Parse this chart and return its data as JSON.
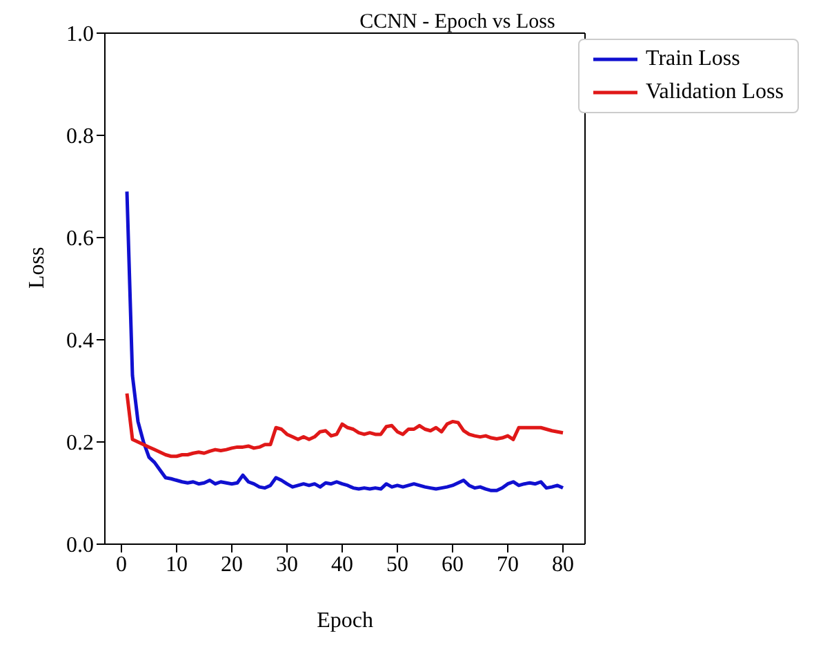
{
  "chart_data": {
    "type": "line",
    "title": "CCNN - Epoch vs Loss",
    "xlabel": "Epoch",
    "ylabel": "Loss",
    "x": [
      1,
      2,
      3,
      4,
      5,
      6,
      7,
      8,
      9,
      10,
      11,
      12,
      13,
      14,
      15,
      16,
      17,
      18,
      19,
      20,
      21,
      22,
      23,
      24,
      25,
      26,
      27,
      28,
      29,
      30,
      31,
      32,
      33,
      34,
      35,
      36,
      37,
      38,
      39,
      40,
      41,
      42,
      43,
      44,
      45,
      46,
      47,
      48,
      49,
      50,
      51,
      52,
      53,
      54,
      55,
      56,
      57,
      58,
      59,
      60,
      61,
      62,
      63,
      64,
      65,
      66,
      67,
      68,
      69,
      70,
      71,
      72,
      73,
      74,
      75,
      76,
      77,
      78,
      79,
      80
    ],
    "series": [
      {
        "name": "Train Loss",
        "color": "#1010d0",
        "values": [
          0.69,
          0.33,
          0.24,
          0.2,
          0.17,
          0.16,
          0.145,
          0.13,
          0.128,
          0.125,
          0.122,
          0.12,
          0.122,
          0.118,
          0.12,
          0.125,
          0.118,
          0.122,
          0.12,
          0.118,
          0.12,
          0.135,
          0.122,
          0.118,
          0.112,
          0.11,
          0.115,
          0.13,
          0.125,
          0.118,
          0.112,
          0.115,
          0.118,
          0.115,
          0.118,
          0.112,
          0.12,
          0.118,
          0.122,
          0.118,
          0.115,
          0.11,
          0.108,
          0.11,
          0.108,
          0.11,
          0.108,
          0.118,
          0.112,
          0.115,
          0.112,
          0.115,
          0.118,
          0.115,
          0.112,
          0.11,
          0.108,
          0.11,
          0.112,
          0.115,
          0.12,
          0.125,
          0.115,
          0.11,
          0.112,
          0.108,
          0.105,
          0.105,
          0.11,
          0.118,
          0.122,
          0.115,
          0.118,
          0.12,
          0.118,
          0.122,
          0.11,
          0.112,
          0.115,
          0.11
        ]
      },
      {
        "name": "Validation Loss",
        "color": "#e01818",
        "values": [
          0.295,
          0.205,
          0.2,
          0.195,
          0.19,
          0.185,
          0.18,
          0.175,
          0.172,
          0.172,
          0.175,
          0.175,
          0.178,
          0.18,
          0.178,
          0.182,
          0.185,
          0.183,
          0.185,
          0.188,
          0.19,
          0.19,
          0.192,
          0.188,
          0.19,
          0.195,
          0.195,
          0.228,
          0.225,
          0.215,
          0.21,
          0.205,
          0.21,
          0.205,
          0.21,
          0.22,
          0.222,
          0.212,
          0.215,
          0.235,
          0.228,
          0.225,
          0.218,
          0.215,
          0.218,
          0.215,
          0.215,
          0.23,
          0.232,
          0.22,
          0.215,
          0.225,
          0.225,
          0.232,
          0.225,
          0.222,
          0.228,
          0.22,
          0.235,
          0.24,
          0.238,
          0.222,
          0.215,
          0.212,
          0.21,
          0.212,
          0.208,
          0.206,
          0.208,
          0.212,
          0.205,
          0.228,
          0.228,
          0.228,
          0.228,
          0.228,
          0.225,
          0.222,
          0.22,
          0.218
        ]
      }
    ],
    "xlim": [
      -3,
      84
    ],
    "xticks": [
      0,
      10,
      20,
      30,
      40,
      50,
      60,
      70,
      80
    ],
    "ylim": [
      0,
      1
    ],
    "yticks": [
      {
        "value": 0,
        "label": "0.0"
      },
      0.2,
      0.4,
      0.6,
      0.8,
      {
        "value": 1,
        "label": "1.0"
      }
    ],
    "legend": "top right",
    "grid": false
  }
}
